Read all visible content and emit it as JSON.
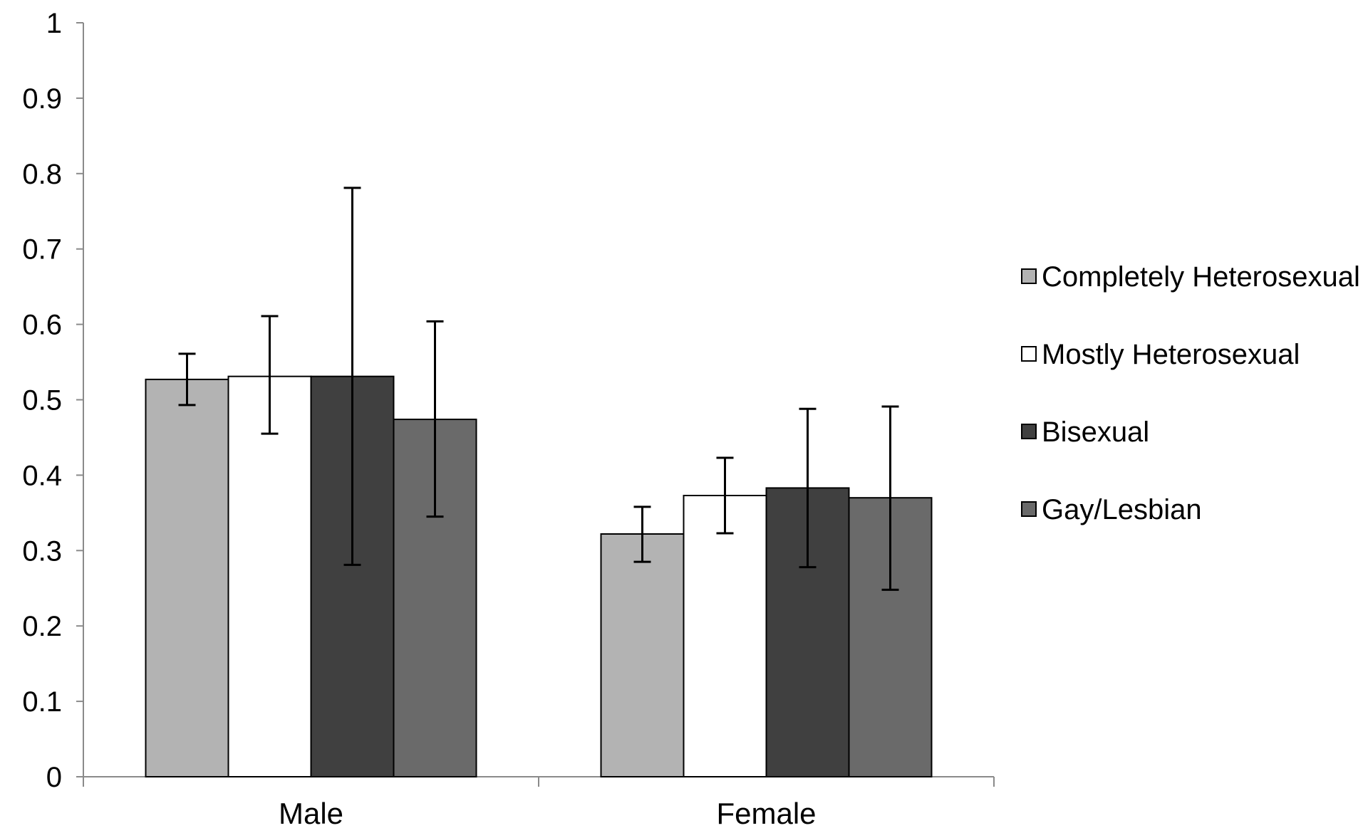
{
  "chart_data": {
    "type": "bar",
    "title": "",
    "xlabel": "",
    "ylabel": "",
    "ylim": [
      0,
      1
    ],
    "yticks": [
      "0",
      "0.1",
      "0.2",
      "0.3",
      "0.4",
      "0.5",
      "0.6",
      "0.7",
      "0.8",
      "0.9",
      "1"
    ],
    "grid": false,
    "legend_position": "right",
    "categories": [
      "Male",
      "Female"
    ],
    "series": [
      {
        "name": "Completely Heterosexual",
        "color": "#b3b3b3",
        "values": [
          0.527,
          0.322
        ],
        "error_low": [
          0.493,
          0.285
        ],
        "error_high": [
          0.561,
          0.358
        ]
      },
      {
        "name": "Mostly Heterosexual",
        "color": "#ffffff",
        "values": [
          0.531,
          0.373
        ],
        "error_low": [
          0.455,
          0.323
        ],
        "error_high": [
          0.611,
          0.423
        ]
      },
      {
        "name": "Bisexual",
        "color": "#404040",
        "values": [
          0.531,
          0.383
        ],
        "error_low": [
          0.281,
          0.278
        ],
        "error_high": [
          0.781,
          0.488
        ]
      },
      {
        "name": "Gay/Lesbian",
        "color": "#6a6a6a",
        "values": [
          0.474,
          0.37
        ],
        "error_low": [
          0.345,
          0.248
        ],
        "error_high": [
          0.604,
          0.491
        ]
      }
    ]
  }
}
